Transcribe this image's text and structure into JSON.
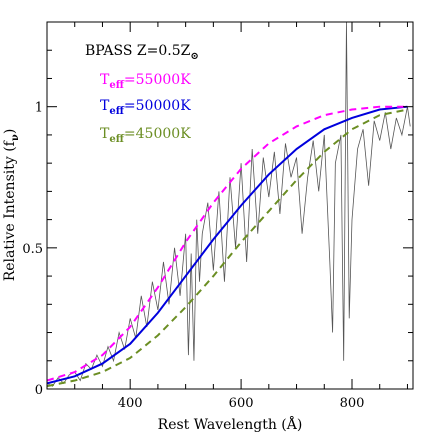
{
  "chart_data": {
    "type": "line",
    "xlabel": "Rest Wavelength (Å)",
    "ylabel": "Relative Intensity (f",
    "ylabel_sub": "ν",
    "ylabel_close": ")",
    "xlim": [
      250,
      910
    ],
    "ylim": [
      0,
      1.3
    ],
    "xticks_major": [
      400,
      600,
      800
    ],
    "xticks_major_labels": [
      "400",
      "600",
      "800"
    ],
    "yticks_major": [
      0,
      0.5,
      1
    ],
    "yticks_major_labels": [
      "0",
      "0.5",
      "1"
    ],
    "annotation": {
      "text": "BPASS Z=0.5Z",
      "sub": "⊙"
    },
    "series": [
      {
        "name_main": "T",
        "name_sub": "eff",
        "name_rest": "=55000K",
        "color": "#ff00ff",
        "style": "dashed",
        "x": [
          250,
          300,
          350,
          400,
          450,
          500,
          550,
          600,
          650,
          700,
          750,
          800,
          850,
          900
        ],
        "y": [
          0.03,
          0.06,
          0.12,
          0.22,
          0.36,
          0.52,
          0.66,
          0.78,
          0.87,
          0.93,
          0.97,
          0.99,
          1.0,
          1.0
        ]
      },
      {
        "name_main": "T",
        "name_sub": "eff",
        "name_rest": "=50000K",
        "color": "#0000dd",
        "style": "solid",
        "x": [
          250,
          300,
          350,
          400,
          450,
          500,
          550,
          600,
          650,
          700,
          750,
          800,
          850,
          900
        ],
        "y": [
          0.02,
          0.045,
          0.09,
          0.16,
          0.27,
          0.4,
          0.53,
          0.65,
          0.76,
          0.85,
          0.92,
          0.96,
          0.99,
          1.0
        ]
      },
      {
        "name_main": "T",
        "name_sub": "eff",
        "name_rest": "=45000K",
        "color": "#6b8e23",
        "style": "dashed",
        "x": [
          250,
          300,
          350,
          400,
          450,
          500,
          550,
          600,
          650,
          700,
          750,
          800,
          850,
          900
        ],
        "y": [
          0.01,
          0.03,
          0.06,
          0.11,
          0.19,
          0.29,
          0.4,
          0.52,
          0.63,
          0.74,
          0.84,
          0.92,
          0.97,
          0.99
        ]
      },
      {
        "name": "",
        "color": "#555555",
        "style": "solid-thin",
        "x": [
          250,
          260,
          270,
          280,
          290,
          300,
          310,
          320,
          330,
          340,
          350,
          360,
          370,
          380,
          390,
          400,
          410,
          420,
          430,
          440,
          450,
          460,
          470,
          480,
          490,
          500,
          505,
          510,
          515,
          520,
          525,
          530,
          540,
          550,
          560,
          570,
          580,
          590,
          600,
          610,
          620,
          630,
          640,
          650,
          660,
          670,
          680,
          690,
          700,
          710,
          720,
          730,
          740,
          750,
          760,
          765,
          770,
          780,
          785,
          790,
          795,
          800,
          810,
          820,
          830,
          840,
          850,
          860,
          870,
          880,
          890,
          900,
          905
        ],
        "y": [
          0.02,
          0.01,
          0.04,
          0.02,
          0.05,
          0.06,
          0.03,
          0.09,
          0.07,
          0.12,
          0.08,
          0.15,
          0.1,
          0.2,
          0.14,
          0.25,
          0.18,
          0.33,
          0.22,
          0.38,
          0.28,
          0.45,
          0.3,
          0.5,
          0.33,
          0.55,
          0.12,
          0.48,
          0.1,
          0.6,
          0.38,
          0.55,
          0.66,
          0.42,
          0.7,
          0.38,
          0.75,
          0.5,
          0.8,
          0.45,
          0.85,
          0.55,
          0.82,
          0.68,
          0.84,
          0.62,
          0.87,
          0.75,
          0.82,
          0.55,
          0.75,
          0.88,
          0.7,
          0.9,
          0.45,
          0.2,
          0.8,
          0.9,
          0.1,
          1.3,
          0.25,
          0.6,
          0.85,
          0.92,
          0.72,
          0.95,
          0.88,
          0.98,
          0.85,
          0.96,
          0.9,
          1.0,
          0.93
        ]
      }
    ]
  }
}
